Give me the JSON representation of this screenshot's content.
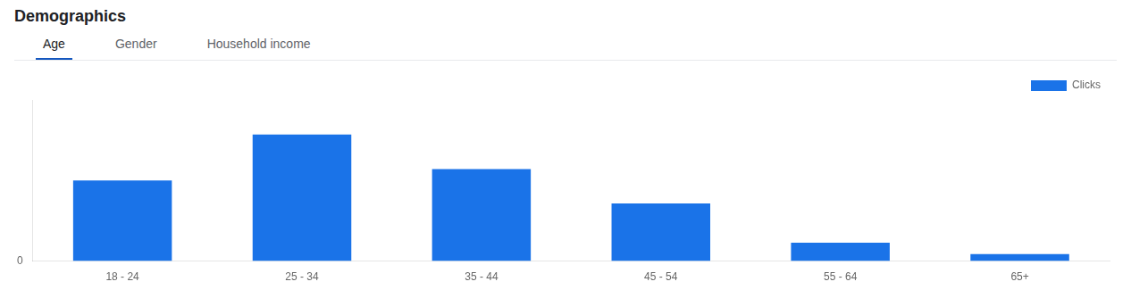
{
  "chart_data": {
    "type": "bar",
    "title": "Demographics",
    "annotations": [
      "Age",
      "Gender",
      "Household income"
    ],
    "categories": [
      "18 - 24",
      "25 - 34",
      "35 - 44",
      "45 - 54",
      "55 - 64",
      "65+"
    ],
    "series": [
      {
        "name": "Clicks",
        "color": "#1a73e8",
        "values": [
          3.5,
          5.5,
          4.0,
          2.5,
          0.8,
          0.3
        ]
      }
    ],
    "ylim": [
      0,
      7
    ],
    "yticks": [
      0
    ],
    "grid": false,
    "legend": "top-right"
  }
}
